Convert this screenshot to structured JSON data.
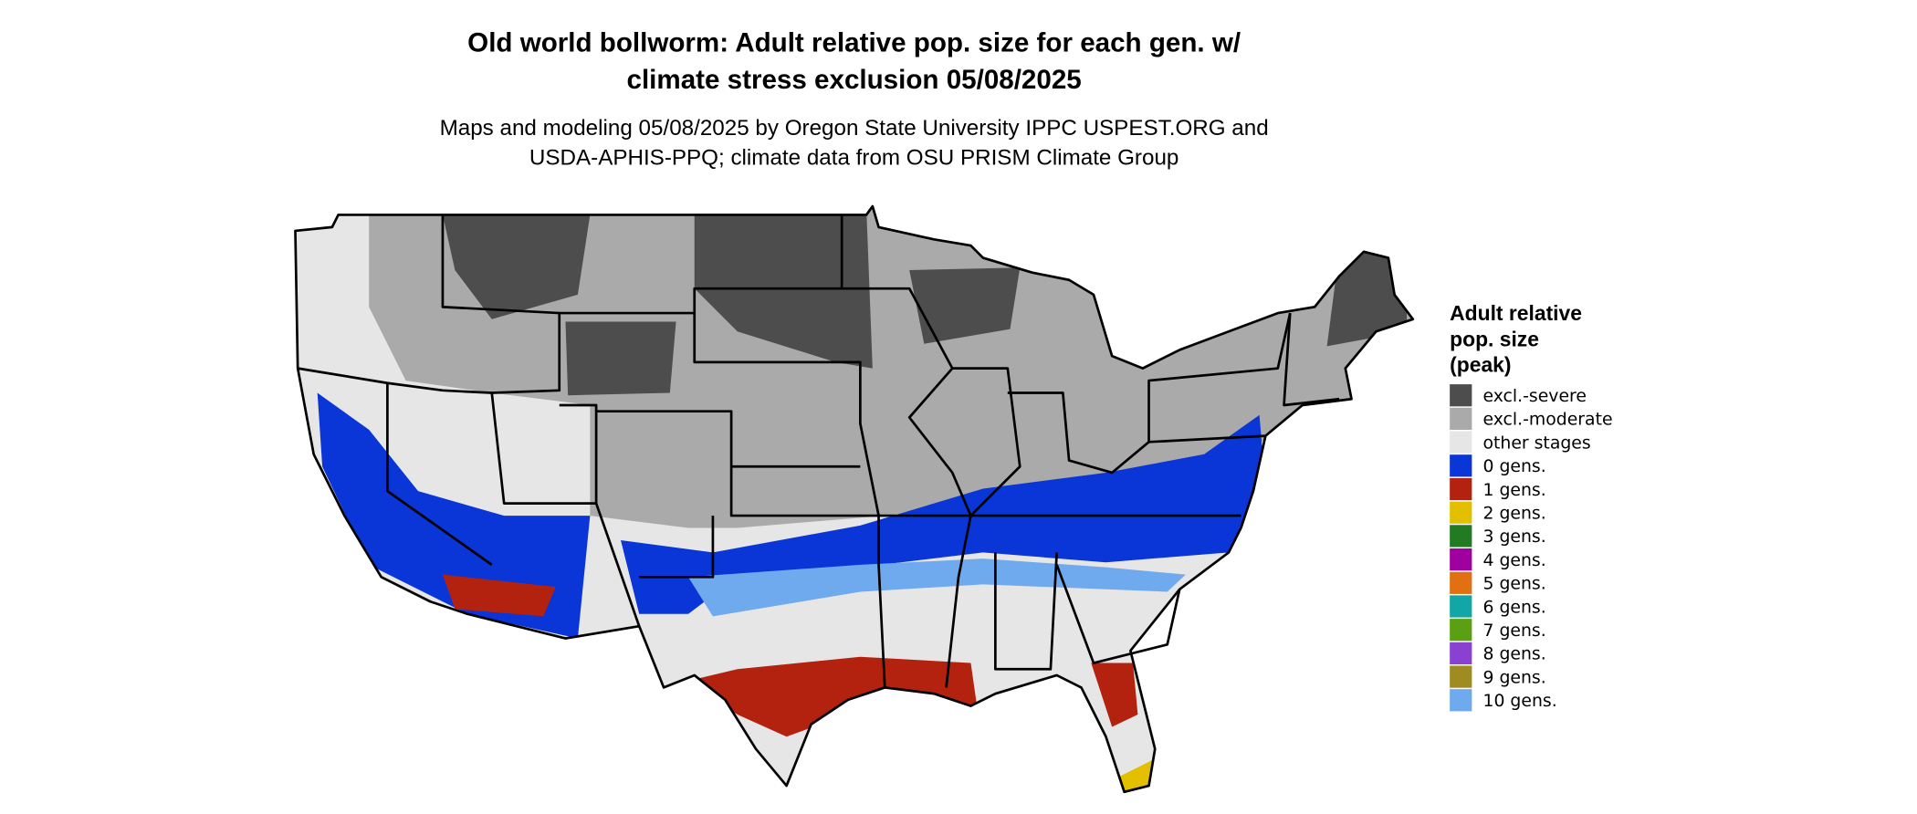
{
  "header": {
    "title": [
      "Old world bollworm: Adult relative pop. size for each gen. w/",
      "climate stress exclusion 05/08/2025"
    ],
    "subtitle": [
      "Maps and modeling 05/08/2025 by Oregon State University IPPC USPEST.ORG and",
      "USDA-APHIS-PPQ; climate data from OSU PRISM Climate Group"
    ]
  },
  "legend": {
    "title": [
      "Adult relative",
      "pop. size",
      "(peak)"
    ],
    "items": [
      {
        "label": "excl.-severe",
        "color": "#4d4d4d"
      },
      {
        "label": "excl.-moderate",
        "color": "#aaaaaa"
      },
      {
        "label": "other stages",
        "color": "#e6e6e6"
      },
      {
        "label": "0 gens.",
        "color": "#0a36d8"
      },
      {
        "label": "1 gens.",
        "color": "#b2220f"
      },
      {
        "label": "2 gens.",
        "color": "#e2c000"
      },
      {
        "label": "3 gens.",
        "color": "#227a22"
      },
      {
        "label": "4 gens.",
        "color": "#a000a0"
      },
      {
        "label": "5 gens.",
        "color": "#e07012"
      },
      {
        "label": "6 gens.",
        "color": "#12a6a6"
      },
      {
        "label": "7 gens.",
        "color": "#5aa012"
      },
      {
        "label": "8 gens.",
        "color": "#8a40d0"
      },
      {
        "label": "9 gens.",
        "color": "#a08a22"
      },
      {
        "label": "10 gens.",
        "color": "#70aaee"
      }
    ]
  }
}
